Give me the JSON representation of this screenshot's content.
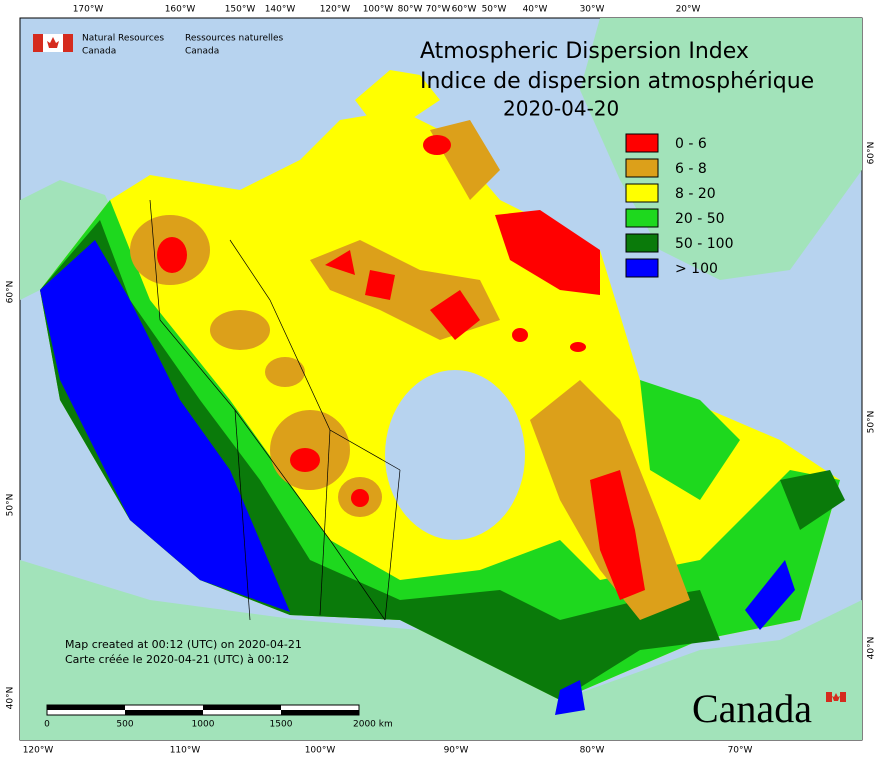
{
  "header": {
    "agency_en": [
      "Natural Resources",
      "Canada"
    ],
    "agency_fr": [
      "Ressources naturelles",
      "Canada"
    ]
  },
  "title": [
    "Atmospheric Dispersion Index",
    "Indice de dispersion atmosphérique"
  ],
  "date": "2020-04-20",
  "legend": [
    {
      "label": "0 - 6",
      "color": "#ff0000"
    },
    {
      "label": "6 - 8",
      "color": "#dca01a"
    },
    {
      "label": "8 - 20",
      "color": "#ffff00"
    },
    {
      "label": "20 - 50",
      "color": "#1ed81e"
    },
    {
      "label": "50 - 100",
      "color": "#0a7a0a"
    },
    {
      "label": "> 100",
      "color": "#0000ff"
    }
  ],
  "top_labels": [
    "170°W",
    "160°W",
    "150°W",
    "140°W",
    "120°W",
    "100°W",
    "80°W",
    "70°W",
    "60°W",
    "50°W",
    "40°W",
    "30°W",
    "20°W"
  ],
  "bottom_labels": [
    "120°W",
    "110°W",
    "100°W",
    "90°W",
    "80°W",
    "70°W"
  ],
  "left_labels": [
    "60°N",
    "50°N",
    "40°N"
  ],
  "right_labels": [
    "60°N",
    "50°N",
    "40°N"
  ],
  "credits": [
    "Map created at 00:12 (UTC) on 2020-04-21",
    "Carte créée le 2020-04-21 (UTC) à 00:12"
  ],
  "scale_labels": [
    "0",
    "500",
    "1000",
    "1500",
    "2000  km"
  ],
  "wordmark": "Canada"
}
